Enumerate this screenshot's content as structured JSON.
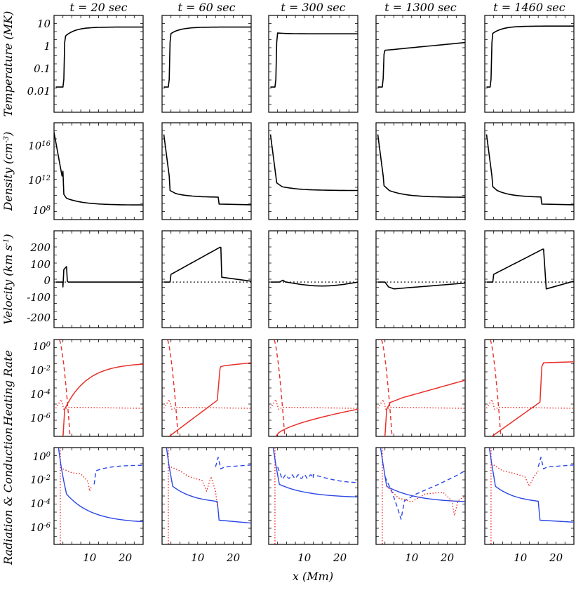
{
  "chart_data": {
    "type": "line",
    "columns": [
      "t = 20 sec",
      "t = 60 sec",
      "t = 300 sec",
      "t = 1300 sec",
      "t = 1460 sec"
    ],
    "rows": [
      {
        "ylabel": "Temperature (MK)",
        "scale": "log",
        "ylim": [
          0.001,
          20
        ],
        "ticks": [
          "0.01",
          "0.1",
          "1",
          "10"
        ]
      },
      {
        "ylabel": "Density (cm^-3)",
        "scale": "log",
        "ylim": [
          100000000.0,
          1e+18
        ],
        "ticks": [
          "10^8",
          "10^12",
          "10^16"
        ]
      },
      {
        "ylabel": "Velocity (km s^-1)",
        "scale": "linear",
        "ylim": [
          -300,
          300
        ],
        "ticks": [
          "-200",
          "-100",
          "0",
          "100",
          "200"
        ]
      },
      {
        "ylabel": "Heating Rate",
        "scale": "log",
        "ticks": [
          "10^0",
          "10^-2",
          "10^-4",
          "10^-6"
        ]
      },
      {
        "ylabel": "Radiation & Conduction",
        "scale": "log",
        "ticks": [
          "10^0",
          "10^-2",
          "10^-4",
          "10^-6"
        ]
      }
    ],
    "xlabel": "x (Mm)",
    "xlim": [
      0,
      25
    ],
    "xticks": [
      "10",
      "20"
    ],
    "colors": {
      "black": "#000000",
      "red": "#e8302a",
      "blue": "#2b47e6"
    }
  }
}
